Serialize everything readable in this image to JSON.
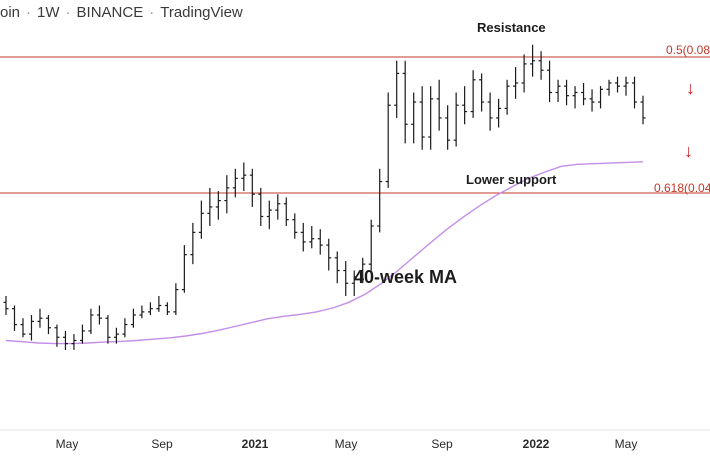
{
  "header": {
    "symbol": "oin",
    "interval": "1W",
    "exchange": "BINANCE",
    "source": "TradingView"
  },
  "annotations": {
    "resistance": "Resistance",
    "lower_support": "Lower support",
    "ma_label": "40-week MA"
  },
  "levels": [
    {
      "label": "0.5(0.08",
      "color": "#c0392b"
    },
    {
      "label": "0.618(0.04",
      "color": "#c0392b"
    }
  ],
  "arrows": [
    "↓",
    "↓"
  ],
  "chart_data": {
    "type": "ohlc",
    "x_ticks": [
      "May",
      "Sep",
      "2021",
      "May",
      "Sep",
      "2022",
      "May"
    ],
    "colors": {
      "bars": "#1a1a1a",
      "ma": "#c38ee8",
      "levels": "#c0392b",
      "arrows": "#d0202a"
    },
    "grid": false,
    "series": [
      {
        "name": "40-week MA",
        "type": "line",
        "values": [
          0.8,
          0.76,
          0.72,
          0.7,
          0.7,
          0.72,
          0.75,
          0.77,
          0.8,
          0.84,
          0.88,
          0.94,
          1.02,
          1.12,
          1.24,
          1.36,
          1.48,
          1.56,
          1.62,
          1.7,
          1.82,
          2.0,
          2.26,
          2.6,
          3.0,
          3.44,
          3.88,
          4.3,
          4.68,
          5.04,
          5.36,
          5.64,
          5.9,
          6.1,
          6.28,
          6.34,
          6.36,
          6.38,
          6.4,
          6.42
        ]
      }
    ],
    "ohlc": [
      [
        2.0,
        2.2,
        1.6,
        1.8
      ],
      [
        1.8,
        1.9,
        1.1,
        1.3
      ],
      [
        1.3,
        1.5,
        0.9,
        1.0
      ],
      [
        1.0,
        1.6,
        0.8,
        1.4
      ],
      [
        1.4,
        1.8,
        1.2,
        1.5
      ],
      [
        1.5,
        1.6,
        1.0,
        1.2
      ],
      [
        1.2,
        1.3,
        0.6,
        0.9
      ],
      [
        0.9,
        1.1,
        0.5,
        0.7
      ],
      [
        0.7,
        1.0,
        0.5,
        0.8
      ],
      [
        0.8,
        1.3,
        0.7,
        1.1
      ],
      [
        1.1,
        1.8,
        1.0,
        1.6
      ],
      [
        1.6,
        1.9,
        1.3,
        1.5
      ],
      [
        1.5,
        1.6,
        0.7,
        0.9
      ],
      [
        0.9,
        1.2,
        0.7,
        1.0
      ],
      [
        1.0,
        1.5,
        0.9,
        1.3
      ],
      [
        1.3,
        1.8,
        1.2,
        1.6
      ],
      [
        1.6,
        1.9,
        1.5,
        1.7
      ],
      [
        1.7,
        2.0,
        1.6,
        1.8
      ],
      [
        1.8,
        2.2,
        1.7,
        1.9
      ],
      [
        1.9,
        2.0,
        1.6,
        1.7
      ],
      [
        1.7,
        2.6,
        1.6,
        2.4
      ],
      [
        2.4,
        3.8,
        2.3,
        3.5
      ],
      [
        3.5,
        4.5,
        3.2,
        4.2
      ],
      [
        4.2,
        5.2,
        4.0,
        4.8
      ],
      [
        4.8,
        5.6,
        4.4,
        5.0
      ],
      [
        5.0,
        5.5,
        4.6,
        5.2
      ],
      [
        5.2,
        6.0,
        4.8,
        5.6
      ],
      [
        5.6,
        6.2,
        5.3,
        5.9
      ],
      [
        5.9,
        6.4,
        5.5,
        6.0
      ],
      [
        6.0,
        6.2,
        5.0,
        5.4
      ],
      [
        5.4,
        5.6,
        4.4,
        4.7
      ],
      [
        4.7,
        5.2,
        4.3,
        4.9
      ],
      [
        4.9,
        5.4,
        4.6,
        5.1
      ],
      [
        5.1,
        5.3,
        4.4,
        4.6
      ],
      [
        4.6,
        4.8,
        4.0,
        4.2
      ],
      [
        4.2,
        4.5,
        3.6,
        3.9
      ],
      [
        3.9,
        4.4,
        3.7,
        4.0
      ],
      [
        4.0,
        4.3,
        3.5,
        3.8
      ],
      [
        3.8,
        4.0,
        3.0,
        3.4
      ],
      [
        3.4,
        3.6,
        2.6,
        3.0
      ],
      [
        3.0,
        3.3,
        2.2,
        2.6
      ],
      [
        2.6,
        3.0,
        2.2,
        2.8
      ],
      [
        2.8,
        3.4,
        2.6,
        3.2
      ],
      [
        3.2,
        4.6,
        3.0,
        4.4
      ],
      [
        4.4,
        6.2,
        4.2,
        5.8
      ],
      [
        5.8,
        8.6,
        5.6,
        8.2
      ],
      [
        8.2,
        9.6,
        7.8,
        9.2
      ],
      [
        9.2,
        9.6,
        7.0,
        7.6
      ],
      [
        7.6,
        8.6,
        7.0,
        8.3
      ],
      [
        8.3,
        8.8,
        6.8,
        7.2
      ],
      [
        7.2,
        8.8,
        6.8,
        8.4
      ],
      [
        8.4,
        9.0,
        7.4,
        7.8
      ],
      [
        7.8,
        8.2,
        6.8,
        7.1
      ],
      [
        7.1,
        8.6,
        6.9,
        8.2
      ],
      [
        8.2,
        8.8,
        7.6,
        8.0
      ],
      [
        8.0,
        9.3,
        7.8,
        9.0
      ],
      [
        9.0,
        9.2,
        8.0,
        8.3
      ],
      [
        8.3,
        8.6,
        7.4,
        7.8
      ],
      [
        7.8,
        8.4,
        7.5,
        8.1
      ],
      [
        8.1,
        9.0,
        7.9,
        8.8
      ],
      [
        8.8,
        9.4,
        8.4,
        8.9
      ],
      [
        8.9,
        9.8,
        8.6,
        9.5
      ],
      [
        9.5,
        10.1,
        9.1,
        9.6
      ],
      [
        9.6,
        9.9,
        9.0,
        9.3
      ],
      [
        9.3,
        9.6,
        8.3,
        8.6
      ],
      [
        8.6,
        9.0,
        8.3,
        8.8
      ],
      [
        8.8,
        9.0,
        8.2,
        8.5
      ],
      [
        8.5,
        8.8,
        8.1,
        8.6
      ],
      [
        8.6,
        8.9,
        8.2,
        8.4
      ],
      [
        8.4,
        8.7,
        8.0,
        8.3
      ],
      [
        8.3,
        8.8,
        8.1,
        8.7
      ],
      [
        8.7,
        9.0,
        8.5,
        8.9
      ],
      [
        8.9,
        9.1,
        8.6,
        8.8
      ],
      [
        8.8,
        9.1,
        8.5,
        8.9
      ],
      [
        8.9,
        9.1,
        8.1,
        8.3
      ],
      [
        8.3,
        8.5,
        7.6,
        7.8
      ]
    ]
  }
}
